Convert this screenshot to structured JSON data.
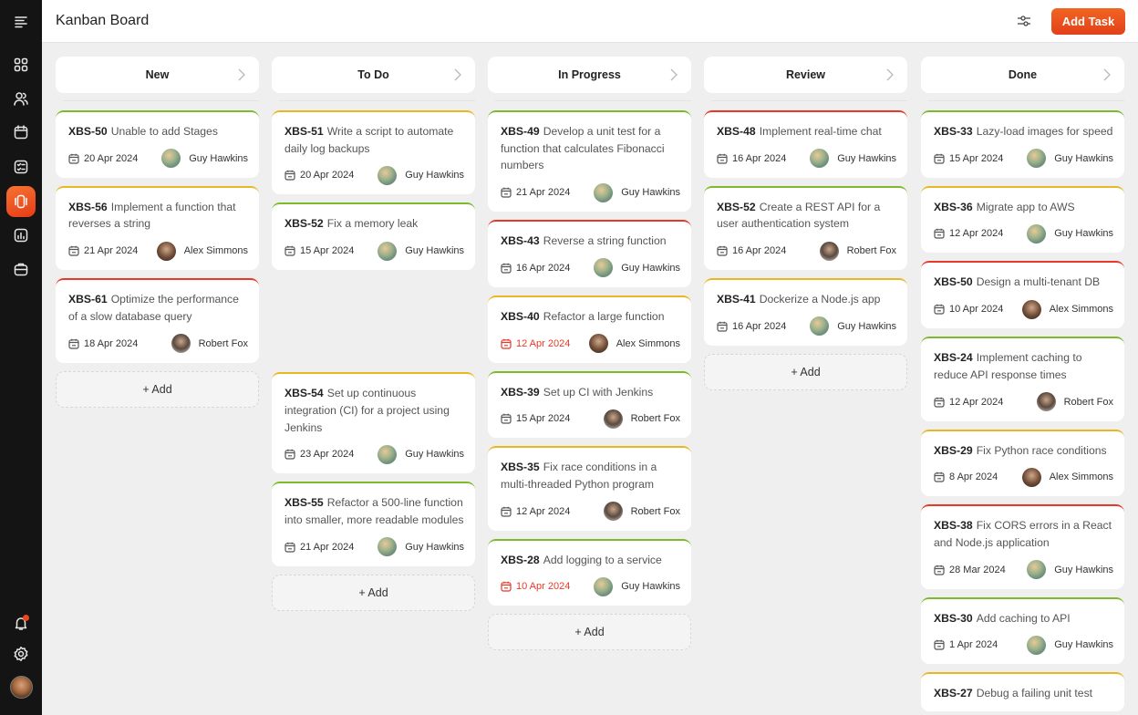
{
  "header": {
    "title": "Kanban Board",
    "filter_icon": "sliders-icon",
    "add_task_label": "Add Task",
    "accent_color": "#ea4c1c"
  },
  "sidebar": {
    "items": [
      {
        "name": "menu",
        "icon": "menu-icon"
      },
      {
        "name": "dashboard",
        "icon": "grid-icon"
      },
      {
        "name": "users",
        "icon": "users-icon"
      },
      {
        "name": "calendar",
        "icon": "calendar-icon"
      },
      {
        "name": "tasks",
        "icon": "checklist-icon"
      },
      {
        "name": "kanban",
        "icon": "board-icon",
        "active": true
      },
      {
        "name": "reports",
        "icon": "chart-icon"
      },
      {
        "name": "projects",
        "icon": "briefcase-icon"
      },
      {
        "name": "notifications",
        "icon": "bell-icon",
        "badge": true
      },
      {
        "name": "settings",
        "icon": "gear-icon"
      }
    ]
  },
  "priority_colors": {
    "low": "#7fb92e",
    "medium": "#e8b823",
    "high": "#e53a2b"
  },
  "add_label": "+ Add",
  "columns": [
    {
      "title": "New",
      "cards": [
        {
          "id": "XBS-50",
          "title": "Unable to add Stages",
          "date": "20 Apr 2024",
          "assignee": "Guy Hawkins",
          "priority": "low",
          "overdue": false
        },
        {
          "id": "XBS-56",
          "title": "Implement a function that reverses a string",
          "date": "21 Apr 2024",
          "assignee": "Alex Simmons",
          "priority": "medium",
          "overdue": false
        },
        {
          "id": "XBS-61",
          "title": "Optimize the performance of a slow database query",
          "date": "18 Apr 2024",
          "assignee": "Robert Fox",
          "priority": "high",
          "overdue": false
        }
      ]
    },
    {
      "title": "To Do",
      "cards": [
        {
          "id": "XBS-51",
          "title": "Write a script to automate daily log backups",
          "date": "20 Apr 2024",
          "assignee": "Guy Hawkins",
          "priority": "medium",
          "overdue": false
        },
        {
          "id": "XBS-52",
          "title": "Fix a memory leak",
          "date": "15 Apr 2024",
          "assignee": "Guy Hawkins",
          "priority": "low",
          "overdue": false
        },
        {
          "id": "XBS-54",
          "title": "Set up continuous integration (CI) for a project using Jenkins",
          "date": "23 Apr 2024",
          "assignee": "Guy Hawkins",
          "priority": "medium",
          "overdue": false
        },
        {
          "id": "XBS-55",
          "title": "Refactor a 500-line function into smaller, more readable modules",
          "date": "21 Apr 2024",
          "assignee": "Guy Hawkins",
          "priority": "low",
          "overdue": false
        }
      ]
    },
    {
      "title": "In Progress",
      "cards": [
        {
          "id": "XBS-49",
          "title": "Develop a unit test for a function that calculates Fibonacci  numbers",
          "date": "21 Apr 2024",
          "assignee": "Guy Hawkins",
          "priority": "low",
          "overdue": false
        },
        {
          "id": "XBS-43",
          "title": "Reverse a string function",
          "date": "16 Apr 2024",
          "assignee": "Guy Hawkins",
          "priority": "high",
          "overdue": false
        },
        {
          "id": "XBS-40",
          "title": "Refactor a large function",
          "date": "12 Apr 2024",
          "assignee": "Alex Simmons",
          "priority": "medium",
          "overdue": true
        },
        {
          "id": "XBS-39",
          "title": "Set up CI with Jenkins",
          "date": "15 Apr 2024",
          "assignee": "Robert Fox",
          "priority": "low",
          "overdue": false
        },
        {
          "id": "XBS-35",
          "title": "Fix race conditions in a multi-threaded Python program",
          "date": "12 Apr 2024",
          "assignee": "Robert Fox",
          "priority": "medium",
          "overdue": false
        },
        {
          "id": "XBS-28",
          "title": "Add logging to a service",
          "date": "10 Apr 2024",
          "assignee": "Guy Hawkins",
          "priority": "low",
          "overdue": true
        }
      ]
    },
    {
      "title": "Review",
      "cards": [
        {
          "id": "XBS-48",
          "title": "Implement real-time chat",
          "date": "16 Apr 2024",
          "assignee": "Guy Hawkins",
          "priority": "high",
          "overdue": false
        },
        {
          "id": "XBS-52",
          "title": "Create a REST API for a user authentication system",
          "date": "16 Apr 2024",
          "assignee": "Robert Fox",
          "priority": "low",
          "overdue": false
        },
        {
          "id": "XBS-41",
          "title": "Dockerize a Node.js app",
          "date": "16 Apr 2024",
          "assignee": "Guy Hawkins",
          "priority": "medium",
          "overdue": false
        }
      ]
    },
    {
      "title": "Done",
      "cards": [
        {
          "id": "XBS-33",
          "title": "Lazy-load images for speed",
          "date": "15 Apr 2024",
          "assignee": "Guy Hawkins",
          "priority": "low",
          "overdue": false
        },
        {
          "id": "XBS-36",
          "title": "Migrate app to AWS",
          "date": "12 Apr 2024",
          "assignee": "Guy Hawkins",
          "priority": "medium",
          "overdue": false
        },
        {
          "id": "XBS-50",
          "title": "Design a multi-tenant DB",
          "date": "10 Apr 2024",
          "assignee": "Alex Simmons",
          "priority": "high",
          "overdue": false
        },
        {
          "id": "XBS-24",
          "title": "Implement caching to reduce API response times",
          "date": "12 Apr 2024",
          "assignee": "Robert Fox",
          "priority": "low",
          "overdue": false
        },
        {
          "id": "XBS-29",
          "title": "Fix Python race conditions",
          "date": "8 Apr 2024",
          "assignee": "Alex Simmons",
          "priority": "medium",
          "overdue": false
        },
        {
          "id": "XBS-38",
          "title": "Fix CORS errors in a React  and Node.js application",
          "date": "28 Mar 2024",
          "assignee": "Guy Hawkins",
          "priority": "high",
          "overdue": false
        },
        {
          "id": "XBS-30",
          "title": "Add caching to API",
          "date": "1 Apr 2024",
          "assignee": "Guy Hawkins",
          "priority": "low",
          "overdue": false
        },
        {
          "id": "XBS-27",
          "title": "Debug a failing unit test",
          "date": "",
          "assignee": "",
          "priority": "medium",
          "overdue": false
        }
      ]
    }
  ]
}
